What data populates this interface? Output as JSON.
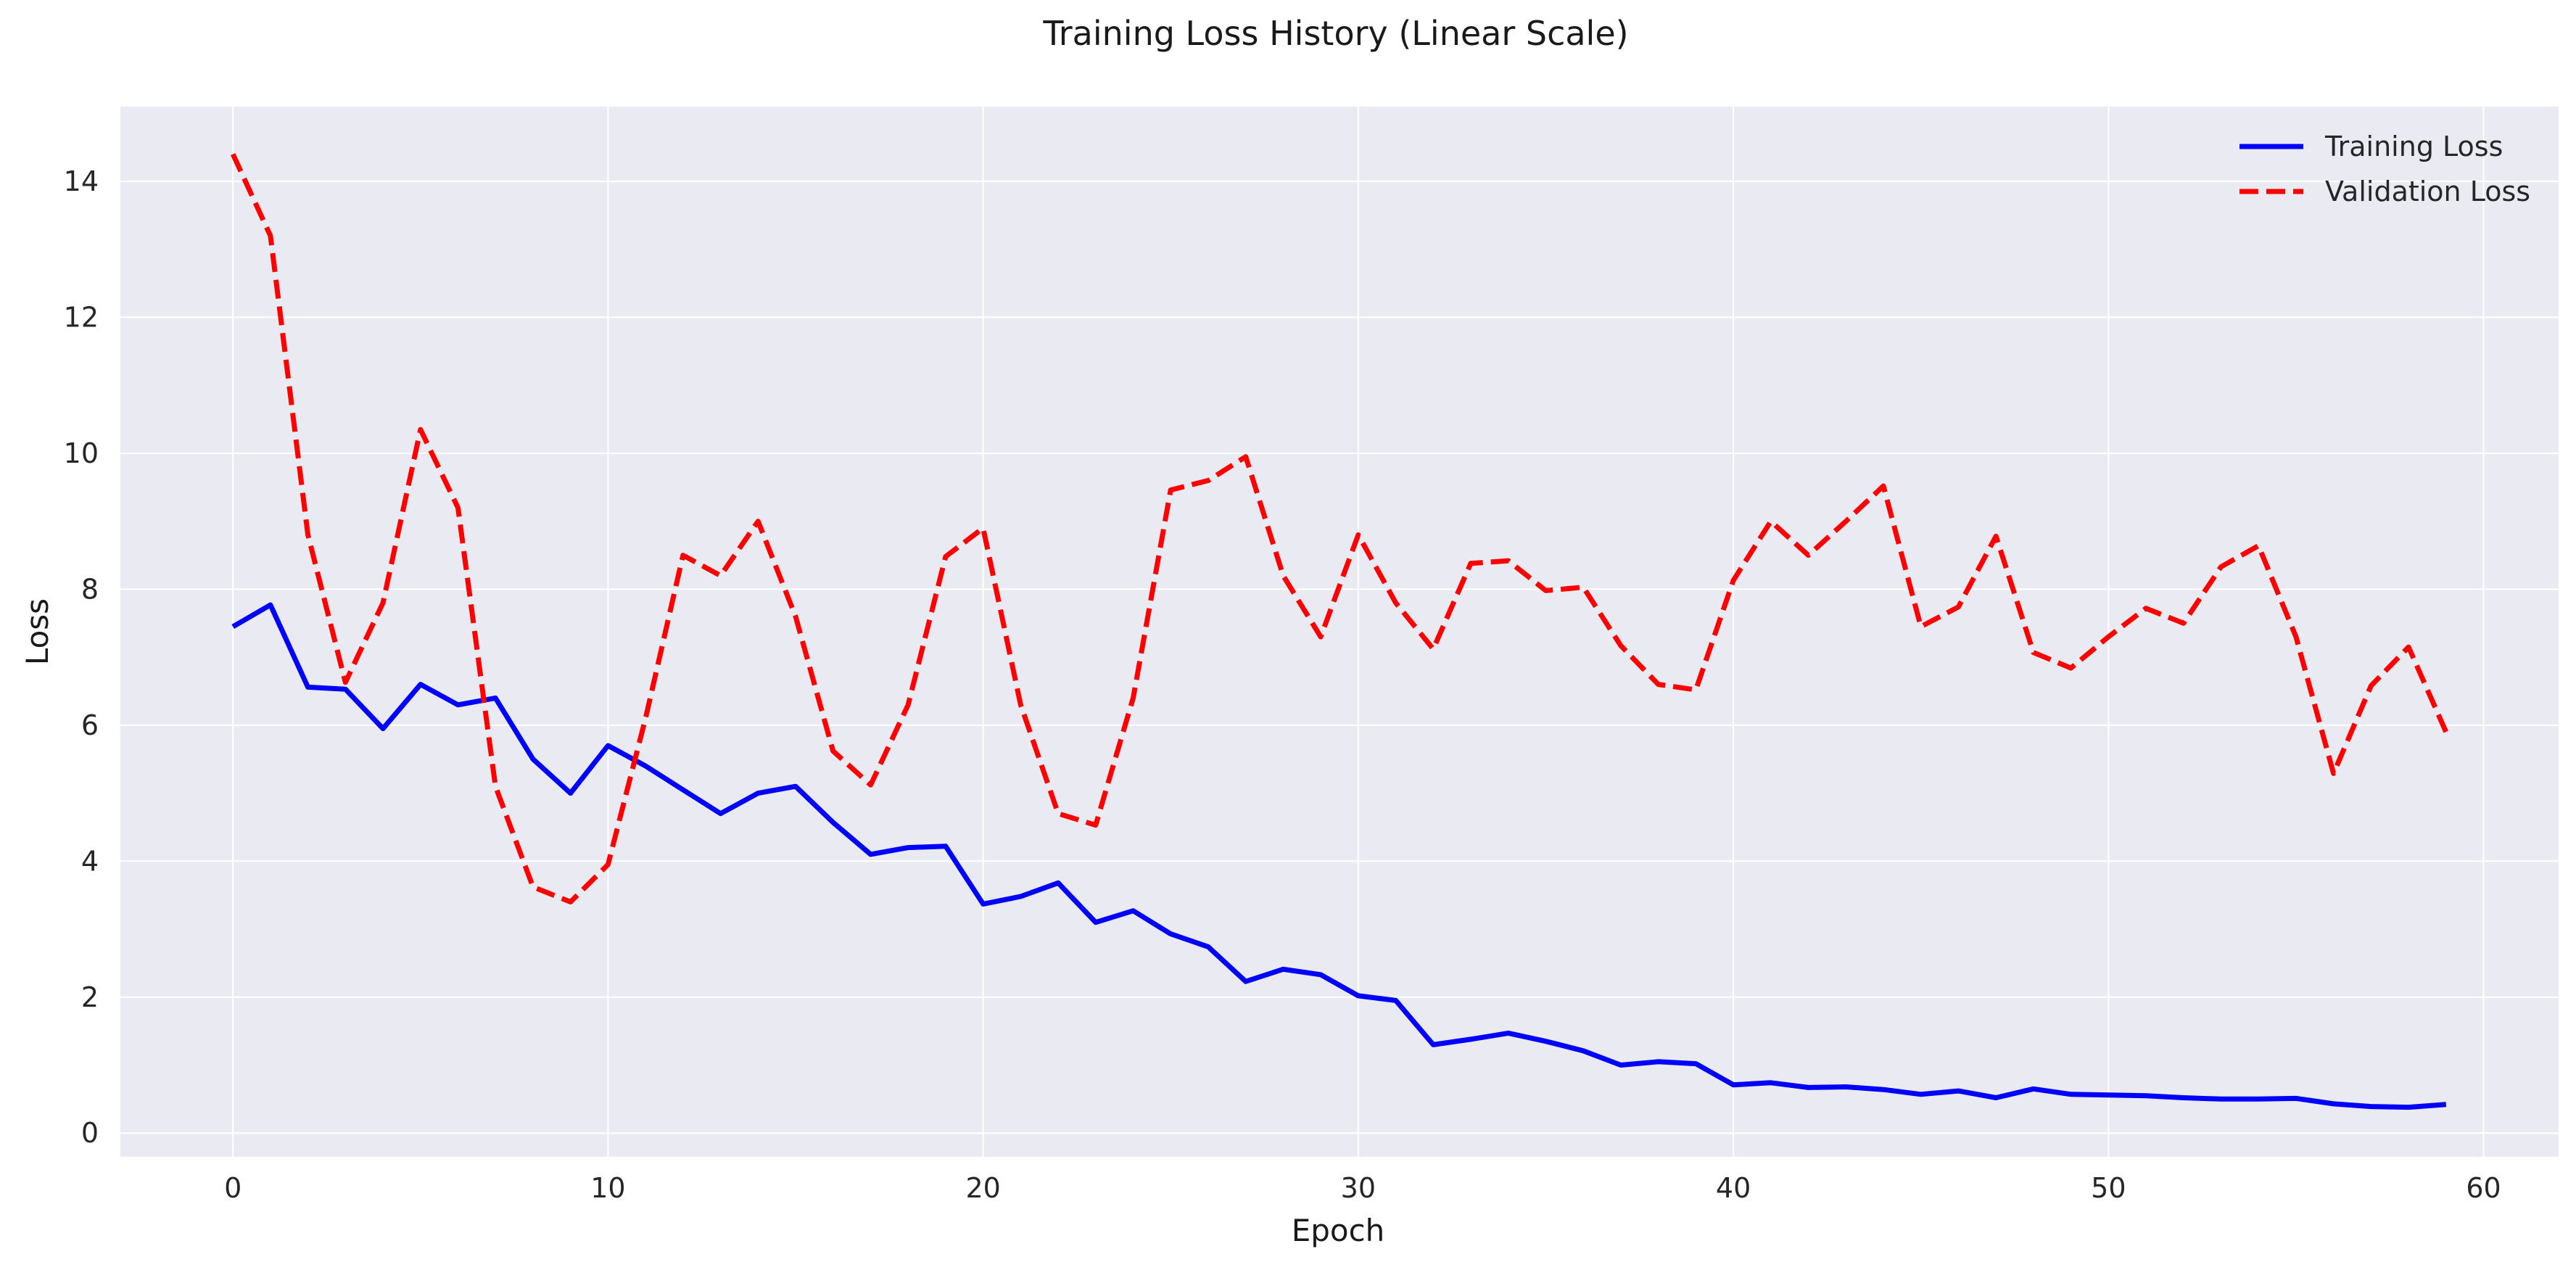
{
  "chart_data": {
    "type": "line",
    "title": "Training Loss History (Linear Scale)",
    "xlabel": "Epoch",
    "ylabel": "Loss",
    "xlim": [
      -3,
      62
    ],
    "ylim": [
      -0.35,
      15.1
    ],
    "xticks": [
      0,
      10,
      20,
      30,
      40,
      50,
      60
    ],
    "yticks": [
      0,
      2,
      4,
      6,
      8,
      10,
      12,
      14
    ],
    "grid": true,
    "legend_position": "top-right",
    "background_color": "#eaeaf2",
    "grid_color": "#ffffff",
    "x": [
      0,
      1,
      2,
      3,
      4,
      5,
      6,
      7,
      8,
      9,
      10,
      11,
      12,
      13,
      14,
      15,
      16,
      17,
      18,
      19,
      20,
      21,
      22,
      23,
      24,
      25,
      26,
      27,
      28,
      29,
      30,
      31,
      32,
      33,
      34,
      35,
      36,
      37,
      38,
      39,
      40,
      41,
      42,
      43,
      44,
      45,
      46,
      47,
      48,
      49,
      50,
      51,
      52,
      53,
      54,
      55,
      56,
      57,
      58,
      59
    ],
    "series": [
      {
        "name": "Training Loss",
        "color": "#0000ff",
        "dash": "solid",
        "values": [
          7.45,
          7.77,
          6.56,
          6.53,
          5.95,
          6.6,
          6.3,
          6.4,
          5.5,
          5.0,
          5.7,
          5.4,
          5.05,
          4.7,
          5.0,
          5.1,
          4.57,
          4.1,
          4.2,
          4.22,
          3.37,
          3.48,
          3.68,
          3.1,
          3.27,
          2.93,
          2.74,
          2.23,
          2.41,
          2.33,
          2.02,
          1.95,
          1.3,
          1.38,
          1.47,
          1.35,
          1.21,
          1.0,
          1.05,
          1.02,
          0.71,
          0.74,
          0.67,
          0.68,
          0.64,
          0.57,
          0.62,
          0.52,
          0.65,
          0.57,
          0.56,
          0.55,
          0.52,
          0.5,
          0.5,
          0.51,
          0.43,
          0.39,
          0.38,
          0.42
        ]
      },
      {
        "name": "Validation Loss",
        "color": "#ff0000",
        "dash": "dashed",
        "values": [
          14.4,
          13.2,
          8.8,
          6.63,
          7.8,
          10.35,
          9.2,
          5.1,
          3.62,
          3.4,
          3.95,
          6.1,
          8.5,
          8.2,
          9.0,
          7.6,
          5.62,
          5.12,
          6.3,
          8.48,
          8.9,
          6.3,
          4.7,
          4.53,
          6.4,
          9.46,
          9.6,
          9.95,
          8.2,
          7.3,
          8.8,
          7.8,
          7.12,
          8.38,
          8.42,
          7.98,
          8.03,
          7.17,
          6.6,
          6.52,
          8.13,
          9.0,
          8.5,
          9.0,
          9.52,
          7.45,
          7.74,
          8.78,
          7.07,
          6.84,
          7.3,
          7.72,
          7.5,
          8.33,
          8.64,
          7.3,
          5.29,
          6.58,
          7.15,
          5.9
        ]
      }
    ]
  }
}
